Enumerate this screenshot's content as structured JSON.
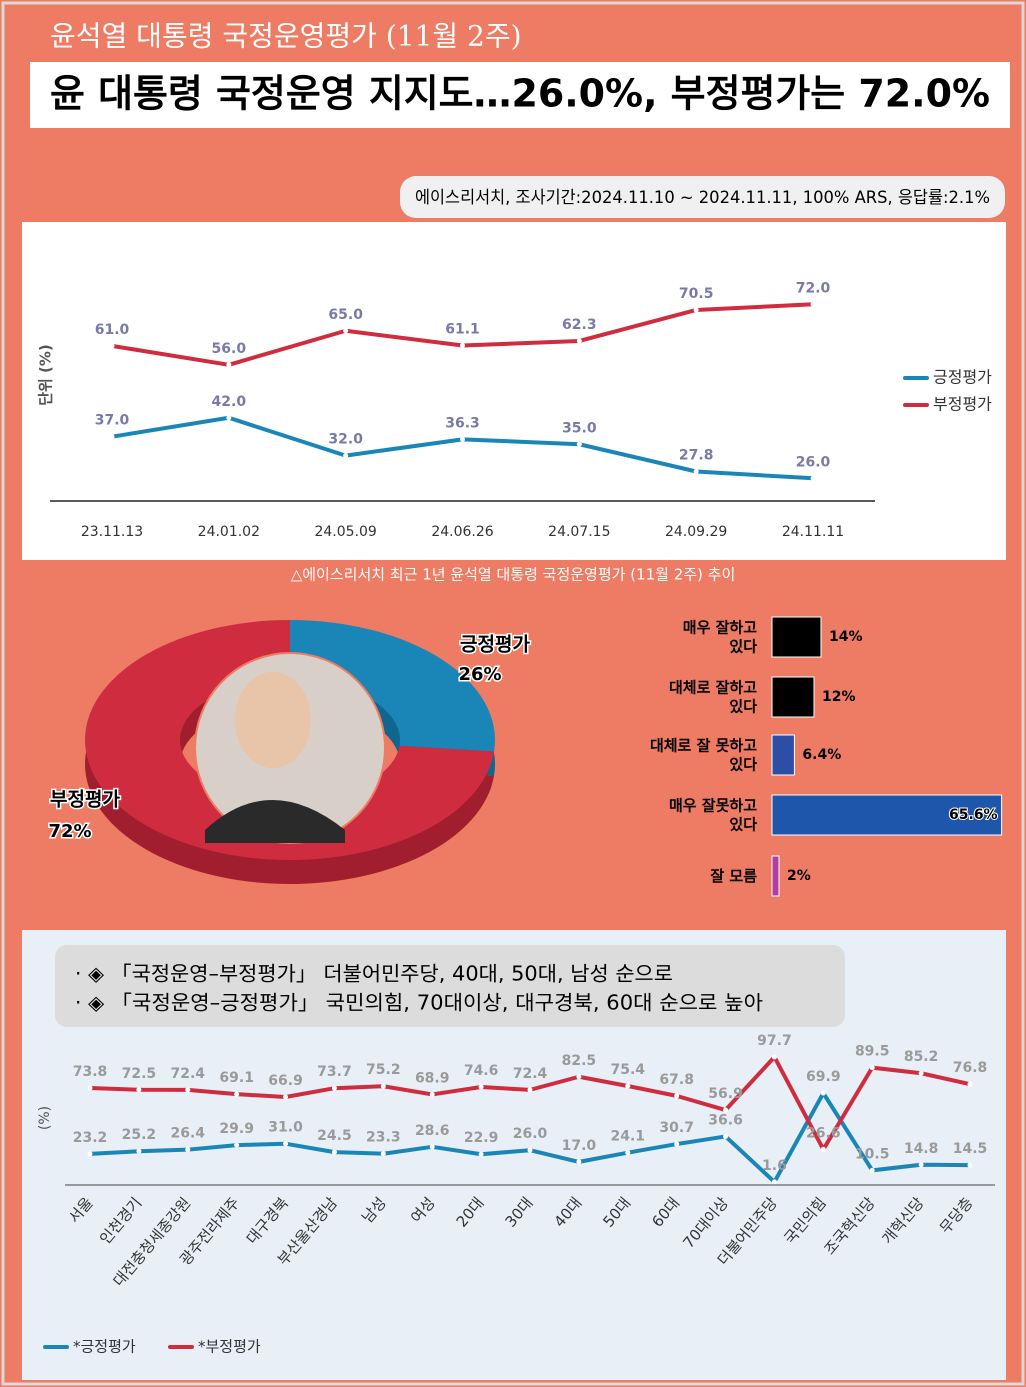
{
  "header": {
    "subtitle": "윤석열 대통령 국정운영평가 (11월 2주)",
    "title": "윤 대통령 국정운영 지지도…26.0%, 부정평가는 72.0%",
    "source": "에이스리서치, 조사기간:2024.11.10 ~ 2024.11.11, 100% ARS, 응답률:2.1%"
  },
  "chart_data": [
    {
      "type": "line",
      "caption": "△에이스리서치 최근 1년 윤석열 대통령 국정운영평가 (11월 2주) 추이",
      "y_label": "단위 (%)",
      "categories": [
        "23.11.13",
        "24.01.02",
        "24.05.09",
        "24.06.26",
        "24.07.15",
        "24.09.29",
        "24.11.11"
      ],
      "ylim": [
        20,
        80
      ],
      "series": [
        {
          "name": "긍정평가",
          "color": "#1a86b8",
          "values": [
            37.0,
            42.0,
            32.0,
            36.3,
            35.0,
            27.8,
            26.0
          ],
          "value_labels": [
            "37.0",
            "42.0",
            "32.0",
            "36.3",
            "35.0",
            "27.8",
            "26.0"
          ]
        },
        {
          "name": "부정평가",
          "color": "#cf2d3f",
          "values": [
            61.0,
            56.0,
            65.0,
            61.1,
            62.3,
            70.5,
            72.0
          ],
          "value_labels": [
            "61.0",
            "56.0",
            "65.0",
            "61.1",
            "62.3",
            "70.5",
            "72.0"
          ]
        }
      ]
    },
    {
      "type": "pie",
      "categories": [
        "긍정평가",
        "부정평가"
      ],
      "values": [
        26,
        72
      ],
      "value_labels": [
        "26%",
        "72%"
      ],
      "colors": [
        "#1a86b8",
        "#cf2d3f"
      ]
    },
    {
      "type": "hbar",
      "categories": [
        "매우 잘하고 있다",
        "대체로 잘하고 있다",
        "대체로 잘 못하고 있다",
        "매우 잘못하고 있다",
        "잘 모름"
      ],
      "values": [
        14,
        12,
        6.4,
        65.6,
        2
      ],
      "value_labels": [
        "14%",
        "12%",
        "6.4%",
        "65.6%",
        "2%"
      ],
      "colors": [
        "#000000",
        "#000000",
        "#2c4ea6",
        "#1e56ac",
        "#b03ea0"
      ],
      "xlim": [
        0,
        66
      ]
    },
    {
      "type": "line",
      "notes": [
        "◈ 「국정운영–부정평가」 더불어민주당, 40대, 50대, 남성 순으로",
        "◈ 「국정운영–긍정평가」 국민의힘, 70대이상, 대구경북, 60대 순으로 높아"
      ],
      "y_label": "(%)",
      "categories": [
        "서울",
        "인천경기",
        "대전충청세종강원",
        "광주전라제주",
        "대구경북",
        "부산울산경남",
        "남성",
        "여성",
        "20대",
        "30대",
        "40대",
        "50대",
        "60대",
        "70대이상",
        "더불어민주당",
        "국민의힘",
        "조국혁신당",
        "개혁신당",
        "무당층"
      ],
      "ylim": [
        0,
        100
      ],
      "series": [
        {
          "name": "*긍정평가",
          "color": "#1a86b8",
          "values": [
            23.2,
            25.2,
            26.4,
            29.9,
            31.0,
            24.5,
            23.3,
            28.6,
            22.9,
            26.0,
            17.0,
            24.1,
            30.7,
            36.6,
            1.6,
            69.9,
            10.5,
            14.8,
            14.5
          ],
          "value_labels": [
            "23.2",
            "25.2",
            "26.4",
            "29.9",
            "31.0",
            "24.5",
            "23.3",
            "28.6",
            "22.9",
            "26.0",
            "17.0",
            "24.1",
            "30.7",
            "36.6",
            "1.6",
            "69.9",
            "10.5",
            "14.8",
            "14.5"
          ]
        },
        {
          "name": "*부정평가",
          "color": "#cf2d3f",
          "values": [
            73.8,
            72.5,
            72.4,
            69.1,
            66.9,
            73.7,
            75.2,
            68.9,
            74.6,
            72.4,
            82.5,
            75.4,
            67.8,
            56.9,
            97.7,
            26.6,
            89.5,
            85.2,
            76.8
          ],
          "value_labels": [
            "73.8",
            "72.5",
            "72.4",
            "69.1",
            "66.9",
            "73.7",
            "75.2",
            "68.9",
            "74.6",
            "72.4",
            "82.5",
            "75.4",
            "67.8",
            "56.9",
            "97.7",
            "26.6",
            "89.5",
            "85.2",
            "76.8"
          ]
        }
      ]
    }
  ]
}
